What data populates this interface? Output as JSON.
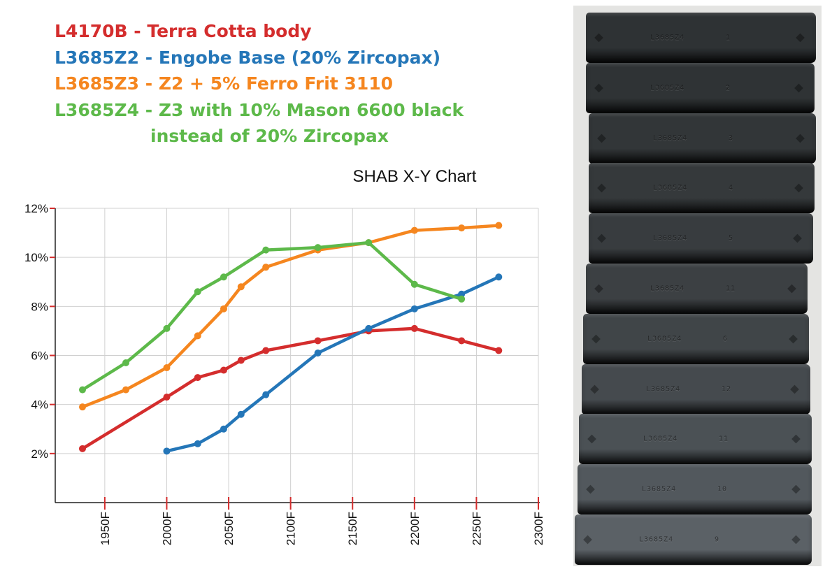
{
  "legend": [
    {
      "text": "L4170B - Terra Cotta body",
      "color": "#d42d2d",
      "indent": false
    },
    {
      "text": "L3685Z2 - Engobe Base (20% Zircopax)",
      "color": "#2476b8",
      "indent": false
    },
    {
      "text": "L3685Z3 - Z2 + 5% Ferro Frit 3110",
      "color": "#f5861f",
      "indent": false
    },
    {
      "text": "L3685Z4 - Z3 with 10% Mason 6600 black",
      "color": "#5db94a",
      "indent": false
    },
    {
      "text": "instead of 20% Zircopax",
      "color": "#5db94a",
      "indent": true
    }
  ],
  "chart_data": {
    "type": "line",
    "title": "SHAB X-Y Chart",
    "xlabel": "",
    "ylabel": "",
    "xlim": [
      1910,
      2300
    ],
    "ylim": [
      0,
      12
    ],
    "x_ticks": [
      1950,
      2000,
      2050,
      2100,
      2150,
      2200,
      2250,
      2300
    ],
    "x_tick_labels": [
      "1950F",
      "2000F",
      "2050F",
      "2100F",
      "2150F",
      "2200F",
      "2250F",
      "2300F"
    ],
    "y_ticks": [
      2,
      4,
      6,
      8,
      10,
      12
    ],
    "y_tick_labels": [
      "2%",
      "4%",
      "6%",
      "8%",
      "10%",
      "12%"
    ],
    "grid": true,
    "series": [
      {
        "name": "L4170B - Terra Cotta body",
        "color": "#d42d2d",
        "x": [
          1932,
          2000,
          2025,
          2046,
          2060,
          2080,
          2122,
          2163,
          2200,
          2238,
          2268
        ],
        "y": [
          2.2,
          4.3,
          5.1,
          5.4,
          5.8,
          6.2,
          6.6,
          7.0,
          7.1,
          6.6,
          6.2
        ]
      },
      {
        "name": "L3685Z2 - Engobe Base (20% Zircopax)",
        "color": "#2476b8",
        "x": [
          2000,
          2025,
          2046,
          2060,
          2080,
          2122,
          2163,
          2200,
          2238,
          2268
        ],
        "y": [
          2.1,
          2.4,
          3.0,
          3.6,
          4.4,
          6.1,
          7.1,
          7.9,
          8.5,
          9.2
        ]
      },
      {
        "name": "L3685Z3 - Z2 + 5% Ferro Frit 3110",
        "color": "#f5861f",
        "x": [
          1932,
          1967,
          2000,
          2025,
          2046,
          2060,
          2080,
          2122,
          2163,
          2200,
          2238,
          2268
        ],
        "y": [
          3.9,
          4.6,
          5.5,
          6.8,
          7.9,
          8.8,
          9.6,
          10.3,
          10.6,
          11.1,
          11.2,
          11.3
        ]
      },
      {
        "name": "L3685Z4 - Z3 with 10% Mason 6600 black instead of 20% Zircopax",
        "color": "#5db94a",
        "x": [
          1932,
          1967,
          2000,
          2025,
          2046,
          2080,
          2122,
          2163,
          2200,
          2238
        ],
        "y": [
          4.6,
          5.7,
          7.1,
          8.6,
          9.2,
          10.3,
          10.4,
          10.6,
          8.9,
          8.3
        ]
      }
    ]
  },
  "photo": {
    "tiles": [
      {
        "label": "L3685Z4",
        "num": "1",
        "color": "#2e3234"
      },
      {
        "label": "L3685Z4",
        "num": "2",
        "color": "#2f3335"
      },
      {
        "label": "L3685Z4",
        "num": "3",
        "color": "#323638"
      },
      {
        "label": "L3685Z4",
        "num": "4",
        "color": "#35393b"
      },
      {
        "label": "L3685Z4",
        "num": "5",
        "color": "#383c3f"
      },
      {
        "label": "L3685Z4",
        "num": "11",
        "color": "#3c4043"
      },
      {
        "label": "L3685Z4",
        "num": "6",
        "color": "#404548"
      },
      {
        "label": "L3685Z4",
        "num": "12",
        "color": "#454a4e"
      },
      {
        "label": "L3685Z4",
        "num": "11",
        "color": "#4b5155"
      },
      {
        "label": "L3685Z4",
        "num": "10",
        "color": "#52585d"
      },
      {
        "label": "L3685Z4",
        "num": "9",
        "color": "#5b6166"
      }
    ]
  }
}
